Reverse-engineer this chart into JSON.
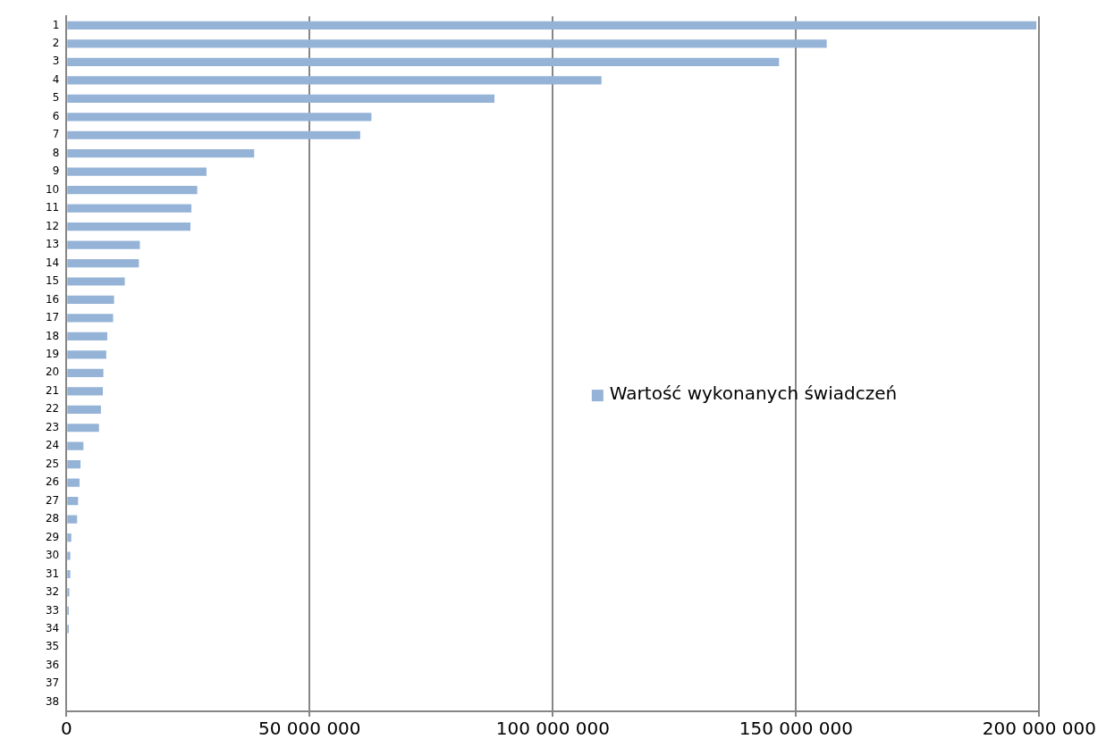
{
  "chart_data": {
    "type": "bar",
    "orientation": "horizontal",
    "categories": [
      "1",
      "2",
      "3",
      "4",
      "5",
      "6",
      "7",
      "8",
      "9",
      "10",
      "11",
      "12",
      "13",
      "14",
      "15",
      "16",
      "17",
      "18",
      "19",
      "20",
      "21",
      "22",
      "23",
      "24",
      "25",
      "26",
      "27",
      "28",
      "29",
      "30",
      "31",
      "32",
      "33",
      "34",
      "35",
      "36",
      "37",
      "38"
    ],
    "series": [
      {
        "name": "Wartość wykonanych świadczeń",
        "color": "#95b3d7",
        "values": [
          199400000,
          156300000,
          146500000,
          110000000,
          88000000,
          62700000,
          60400000,
          38600000,
          28800000,
          26900000,
          25700000,
          25500000,
          15100000,
          14900000,
          12000000,
          9800000,
          9600000,
          8400000,
          8200000,
          7600000,
          7500000,
          7100000,
          6700000,
          3500000,
          2900000,
          2700000,
          2400000,
          2200000,
          1000000,
          800000,
          800000,
          600000,
          500000,
          500000,
          null,
          0,
          0,
          0
        ]
      }
    ],
    "xlim": [
      0,
      200000000
    ],
    "xticks": [
      {
        "value": 0,
        "label": "0"
      },
      {
        "value": 50000000,
        "label": "50 000 000"
      },
      {
        "value": 100000000,
        "label": "100 000 000"
      },
      {
        "value": 150000000,
        "label": "150 000 000"
      },
      {
        "value": 200000000,
        "label": "200 000 000"
      }
    ],
    "grid": "x",
    "legend": "right"
  }
}
